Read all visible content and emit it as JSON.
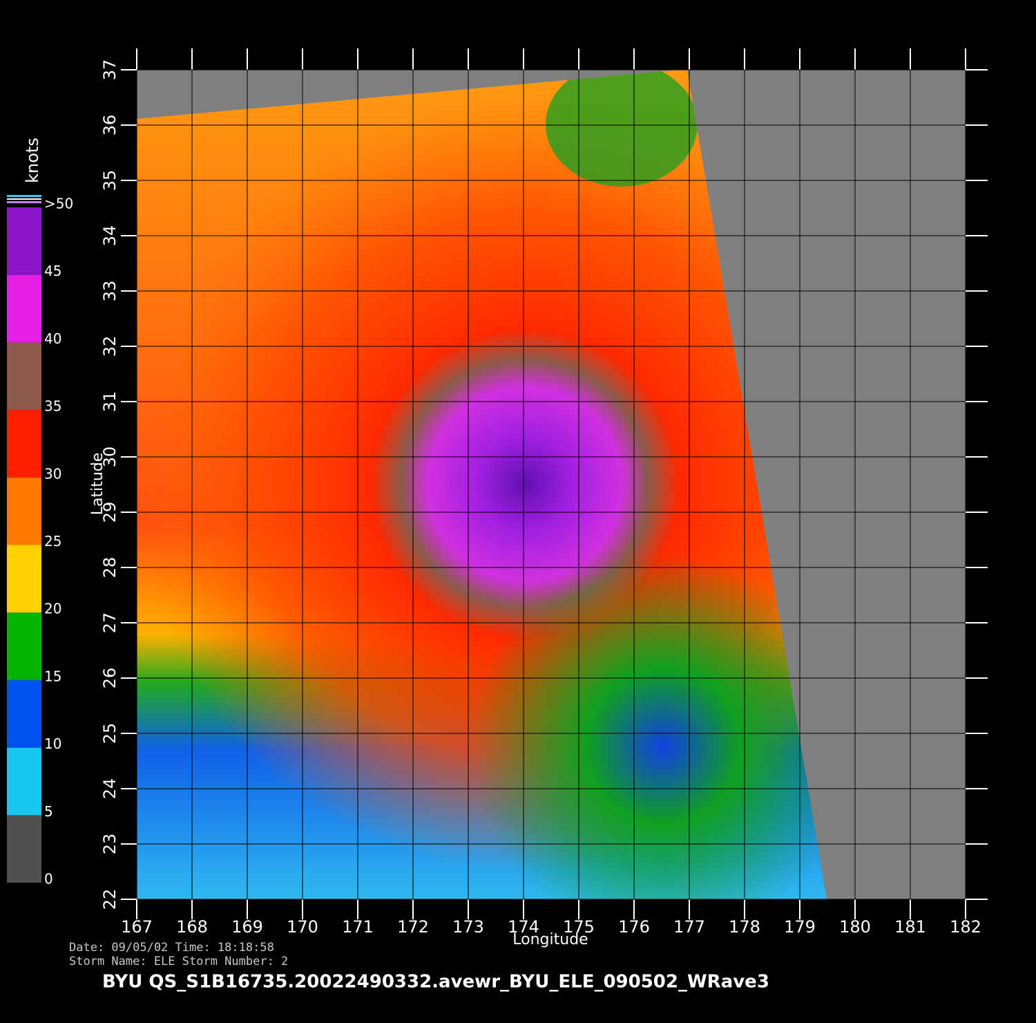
{
  "map": {
    "x_label": "Longitude",
    "y_label": "Latitude",
    "xlim": [
      167,
      182
    ],
    "ylim": [
      22,
      37
    ],
    "xticks": [
      167,
      168,
      169,
      170,
      171,
      172,
      173,
      174,
      175,
      176,
      177,
      178,
      179,
      180,
      181,
      182
    ],
    "yticks": [
      22,
      23,
      24,
      25,
      26,
      27,
      28,
      29,
      30,
      31,
      32,
      33,
      34,
      35,
      36,
      37
    ],
    "colorbar": {
      "unit": "knots",
      "lim": [
        0,
        50
      ],
      "ticks": [
        0,
        5,
        10,
        15,
        20,
        25,
        30,
        35,
        40,
        45,
        {
          "value": 50,
          "label": ">50"
        }
      ],
      "colors": [
        "#505050",
        "#19c8f0",
        "#0050f0",
        "#00b400",
        "#ffd200",
        "#ff7800",
        "#ff1e00",
        "#8c5a4b",
        "#e61ee6",
        "#8c14c8"
      ]
    },
    "info": [
      "Date: 09/05/02   Time: 18:18:58",
      "Storm  Name: ELE   Storm  Number: 2"
    ],
    "filename": "BYU  QS_S1B16735.20022490332.avewr_BYU_ELE_090502_WRave3"
  }
}
